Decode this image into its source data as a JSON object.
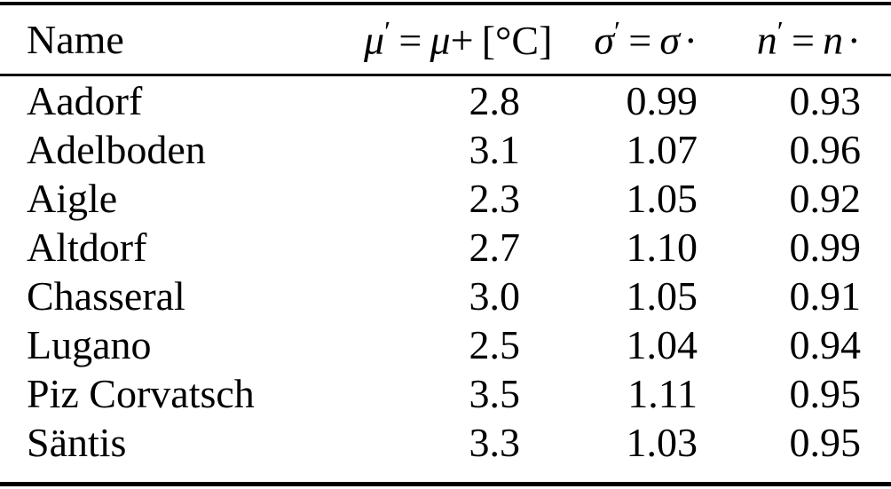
{
  "colors": {
    "text": "#000000",
    "background": "#ffffff",
    "rule": "#000000"
  },
  "table": {
    "columns": [
      {
        "label": "Name"
      },
      {
        "label": "μ′ = μ+ [°C]",
        "parts": {
          "lhs": "μ",
          "prime": "′",
          "eq": "=",
          "rhs": "μ",
          "op": "+",
          "unit": "[°C]"
        }
      },
      {
        "label": "σ′ = σ·",
        "parts": {
          "lhs": "σ",
          "prime": "′",
          "eq": "=",
          "rhs": "σ",
          "op": "·"
        }
      },
      {
        "label": "n′ = n·",
        "parts": {
          "lhs": "n",
          "prime": "′",
          "eq": "=",
          "rhs": "n",
          "op": "·"
        }
      }
    ],
    "rows": [
      {
        "name": "Aadorf",
        "mu": "2.8",
        "sigma": "0.99",
        "n": "0.93"
      },
      {
        "name": "Adelboden",
        "mu": "3.1",
        "sigma": "1.07",
        "n": "0.96"
      },
      {
        "name": "Aigle",
        "mu": "2.3",
        "sigma": "1.05",
        "n": "0.92"
      },
      {
        "name": "Altdorf",
        "mu": "2.7",
        "sigma": "1.10",
        "n": "0.99"
      },
      {
        "name": "Chasseral",
        "mu": "3.0",
        "sigma": "1.05",
        "n": "0.91"
      },
      {
        "name": "Lugano",
        "mu": "2.5",
        "sigma": "1.04",
        "n": "0.94"
      },
      {
        "name": "Piz Corvatsch",
        "mu": "3.5",
        "sigma": "1.11",
        "n": "0.95"
      },
      {
        "name": "Säntis",
        "mu": "3.3",
        "sigma": "1.03",
        "n": "0.95"
      }
    ]
  }
}
